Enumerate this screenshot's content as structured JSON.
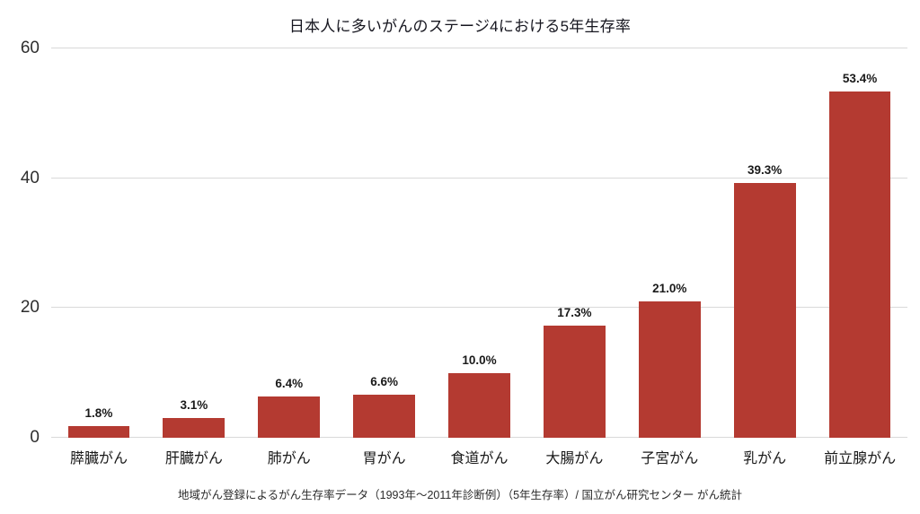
{
  "chart_data": {
    "type": "bar",
    "title": "日本人に多いがんのステージ4における5年生存率",
    "categories": [
      "膵臓がん",
      "肝臓がん",
      "肺がん",
      "胃がん",
      "食道がん",
      "大腸がん",
      "子宮がん",
      "乳がん",
      "前立腺がん"
    ],
    "values": [
      1.8,
      3.1,
      6.4,
      6.6,
      10.0,
      17.3,
      21.0,
      39.3,
      53.4
    ],
    "value_labels": [
      "1.8%",
      "3.1%",
      "6.4%",
      "6.6%",
      "10.0%",
      "17.3%",
      "21.0%",
      "39.3%",
      "53.4%"
    ],
    "xlabel": "",
    "ylabel": "",
    "ylim": [
      0,
      60
    ],
    "y_ticks": [
      0,
      20,
      40,
      60
    ],
    "grid": "horizontal",
    "legend": "none",
    "bar_color": "#b43a31",
    "gridline_color": "#d9d9d9",
    "source": "地域がん登録によるがん生存率データ（1993年～2011年診断例）（5年生存率）/ 国立がん研究センター がん統計"
  }
}
